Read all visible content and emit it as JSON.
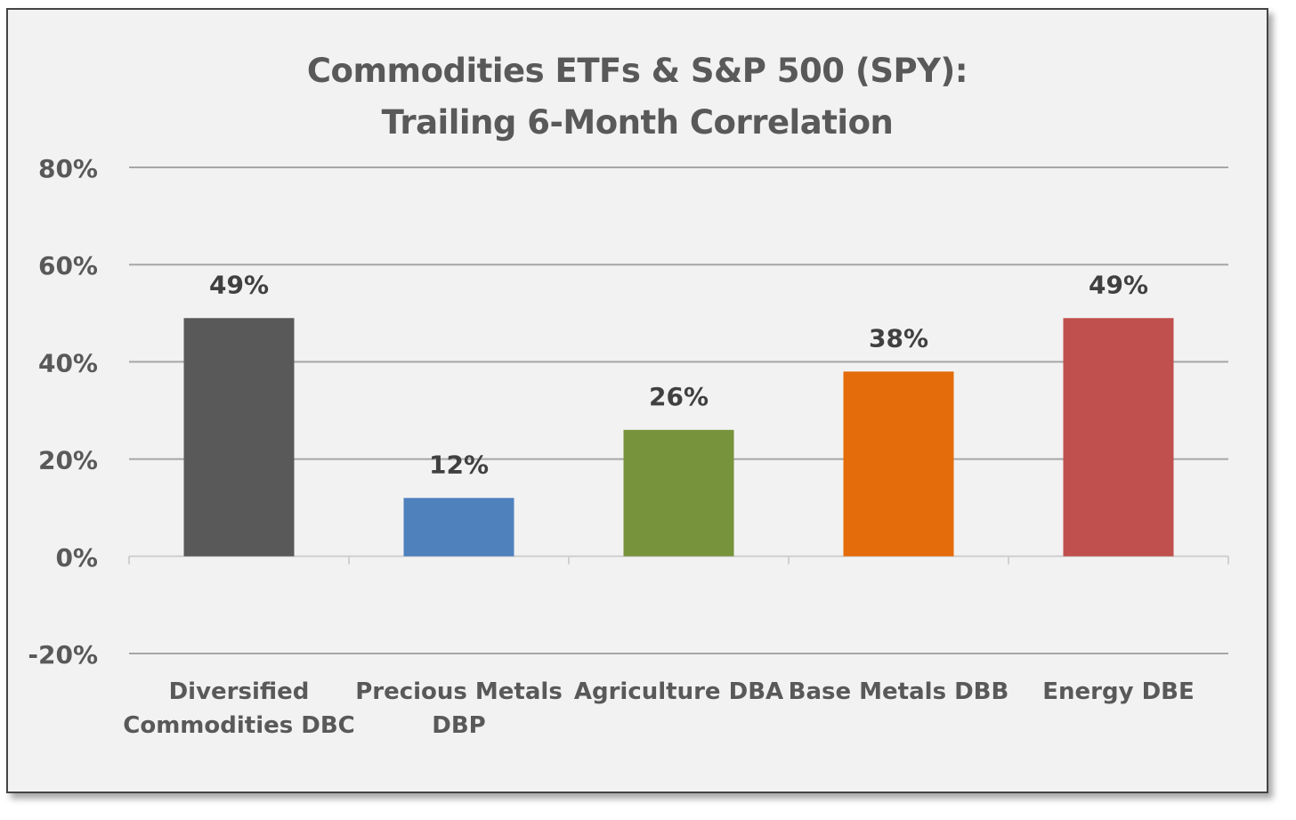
{
  "chart_data": {
    "type": "bar",
    "title_lines": [
      "Commodities ETFs & S&P 500 (SPY):",
      "Trailing 6-Month Correlation"
    ],
    "categories": [
      [
        "Diversified",
        "Commodities DBC"
      ],
      [
        "Precious Metals",
        "DBP"
      ],
      [
        "Agriculture DBA"
      ],
      [
        "Base Metals DBB"
      ],
      [
        "Energy DBE"
      ]
    ],
    "values": [
      49,
      12,
      26,
      38,
      49
    ],
    "data_labels": [
      "49%",
      "12%",
      "26%",
      "38%",
      "49%"
    ],
    "colors": [
      "#595959",
      "#4f81bd",
      "#77933c",
      "#e46c0a",
      "#c0504d"
    ],
    "ylim": [
      -20,
      80
    ],
    "yticks": [
      80,
      60,
      40,
      20,
      0,
      -20
    ],
    "ytick_labels": [
      "80%",
      "60%",
      "40%",
      "20%",
      "0%",
      "-20%"
    ],
    "grid": true,
    "legend": "none"
  }
}
